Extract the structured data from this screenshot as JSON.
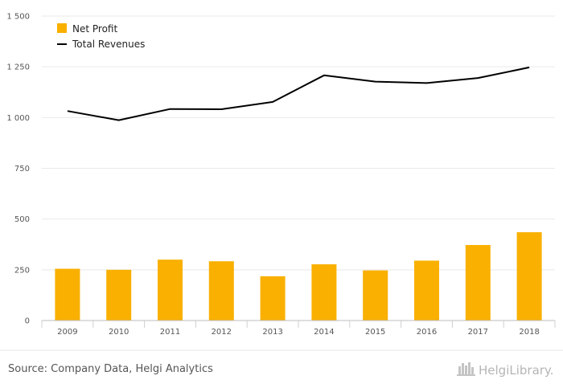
{
  "chart_data": {
    "type": "bar",
    "categories": [
      "2009",
      "2010",
      "2011",
      "2012",
      "2013",
      "2014",
      "2015",
      "2016",
      "2017",
      "2018"
    ],
    "series": [
      {
        "name": "Net Profit",
        "type": "bar",
        "color": "#F9B000",
        "values": [
          255,
          250,
          300,
          292,
          218,
          277,
          247,
          295,
          372,
          435
        ]
      },
      {
        "name": "Total Revenues",
        "type": "line",
        "color": "#000000",
        "values": [
          1032,
          987,
          1042,
          1041,
          1077,
          1208,
          1177,
          1170,
          1195,
          1247
        ]
      }
    ],
    "y_ticks": [
      0,
      250,
      500,
      750,
      1000,
      1250,
      1500
    ],
    "y_tick_labels": [
      "0",
      "250",
      "500",
      "750",
      "1 000",
      "1 250",
      "1 500"
    ],
    "ylim": [
      0,
      1500
    ],
    "grid": true,
    "legend_position": "top-left"
  },
  "footer": {
    "source": "Source: Company Data, Helgi Analytics",
    "brand": "HelgiLibrary."
  }
}
